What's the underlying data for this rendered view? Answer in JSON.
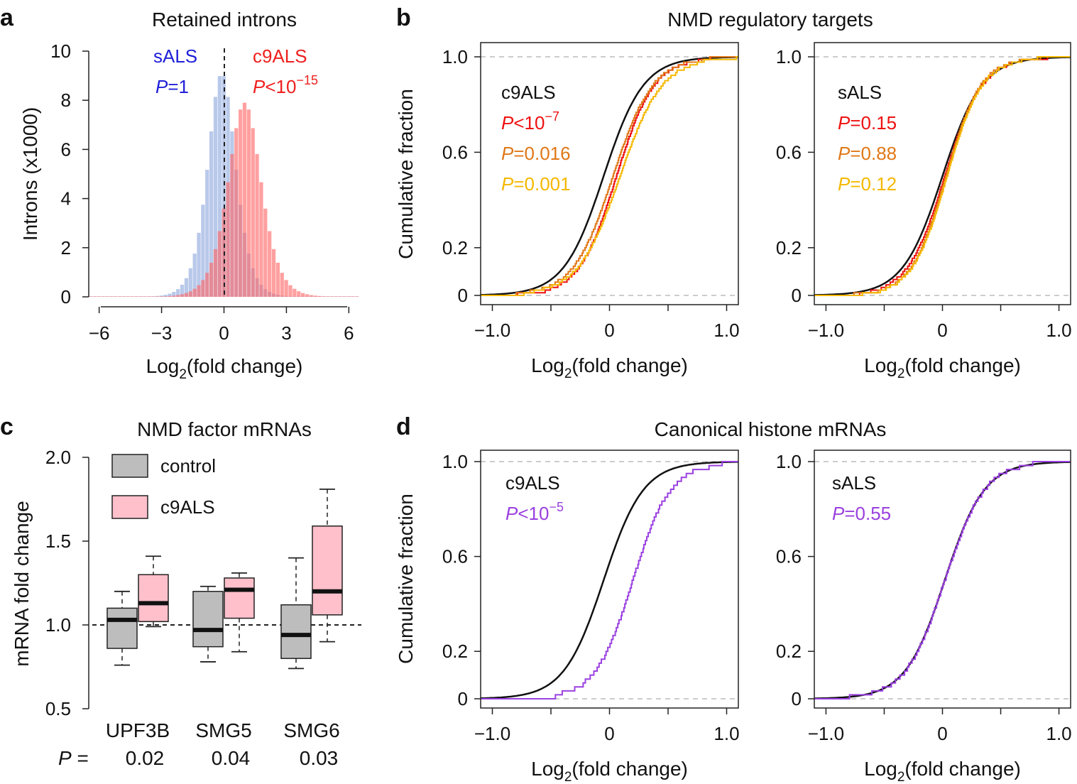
{
  "panel_letters": {
    "a": "a",
    "b": "b",
    "c": "c",
    "d": "d"
  },
  "common": {
    "xlabel_pre": "Log",
    "xlabel_sub": "2",
    "xlabel_post": "(fold change)",
    "cum_ylabel": "Cumulative fraction",
    "p_letter": "P"
  },
  "colors": {
    "black": "#111111",
    "red": "#ee1111",
    "orange": "#e07818",
    "yellow": "#f5b800",
    "purple": "#9a40e0",
    "blue_text": "#1f1fd8",
    "red_text": "#ee2020",
    "blue_fill": "#8ea8dd",
    "red_fill": "#ff6666",
    "control_fill": "#bdbdbd",
    "c9_fill": "#ffc0cb"
  },
  "chart_data": [
    {
      "id": "a",
      "type": "histogram",
      "title": "Retained introns",
      "ylabel": "Introns (x1000)",
      "xlim": [
        -6.5,
        6.5
      ],
      "ylim": [
        0,
        10
      ],
      "xticks": [
        "−6",
        "−3",
        "0",
        "3",
        "6"
      ],
      "xtick_values": [
        -6,
        -3,
        0,
        3,
        6
      ],
      "yticks": [
        "0",
        "2",
        "4",
        "6",
        "8",
        "10"
      ],
      "ytick_values": [
        0,
        2,
        4,
        6,
        8,
        10
      ],
      "series": [
        {
          "name": "sALS",
          "p_value": "=1",
          "center": -0.1,
          "peak": 9.1,
          "scale": 0.8
        },
        {
          "name": "c9ALS",
          "p_value_prefix": "<10",
          "p_value_exp": "−15",
          "center": 1.0,
          "peak": 7.9,
          "scale": 0.95
        }
      ]
    },
    {
      "id": "b",
      "type": "cdf",
      "title": "NMD regulatory targets",
      "subplots": [
        {
          "label": "c9ALS",
          "p_values": [
            {
              "prefix": "<10",
              "exp": "−7",
              "color": "red"
            },
            {
              "prefix": "=0.016",
              "exp": "",
              "color": "orange"
            },
            {
              "prefix": "=0.001",
              "exp": "",
              "color": "yellow"
            }
          ],
          "xlim": [
            -1.1,
            1.1
          ],
          "ylim": [
            0,
            1
          ],
          "xticks": [
            "−1.0",
            "0",
            "1.0"
          ],
          "xtick_values": [
            -1.0,
            0,
            1.0
          ],
          "yticks": [
            "0",
            "0.2",
            "0.6",
            "1.0"
          ],
          "series": [
            {
              "name": "background",
              "color": "black",
              "step": false,
              "center": -0.05,
              "scale": 0.17
            },
            {
              "name": "red",
              "color": "red",
              "step": true,
              "center": 0.06,
              "scale": 0.16,
              "seed": 3
            },
            {
              "name": "orange",
              "color": "orange",
              "step": true,
              "center": 0.03,
              "scale": 0.17,
              "seed": 7
            },
            {
              "name": "yellow",
              "color": "yellow",
              "step": true,
              "center": 0.09,
              "scale": 0.18,
              "seed": 11
            }
          ]
        },
        {
          "label": "sALS",
          "p_values": [
            {
              "prefix": "=0.15",
              "exp": "",
              "color": "red"
            },
            {
              "prefix": "=0.88",
              "exp": "",
              "color": "orange"
            },
            {
              "prefix": "=0.12",
              "exp": "",
              "color": "yellow"
            }
          ],
          "xlim": [
            -1.1,
            1.1
          ],
          "ylim": [
            0,
            1
          ],
          "xticks": [
            "−1.0",
            "0",
            "1.0"
          ],
          "xtick_values": [
            -1.0,
            0,
            1.0
          ],
          "yticks": [
            "0",
            "0.2",
            "0.6",
            "1.0"
          ],
          "series": [
            {
              "name": "background",
              "color": "black",
              "step": false,
              "center": 0.0,
              "scale": 0.17
            },
            {
              "name": "red",
              "color": "red",
              "step": true,
              "center": 0.02,
              "scale": 0.16,
              "seed": 5
            },
            {
              "name": "orange",
              "color": "orange",
              "step": true,
              "center": 0.03,
              "scale": 0.15,
              "seed": 9
            },
            {
              "name": "yellow",
              "color": "yellow",
              "step": true,
              "center": 0.04,
              "scale": 0.15,
              "seed": 13
            }
          ]
        }
      ]
    },
    {
      "id": "c",
      "type": "boxplot",
      "title": "NMD factor mRNAs",
      "ylabel": "mRNA fold change",
      "ylim": [
        0.5,
        2.0
      ],
      "yticks": [
        "0.5",
        "1.0",
        "1.5",
        "2.0"
      ],
      "ytick_values": [
        0.5,
        1.0,
        1.5,
        2.0
      ],
      "reference_line": 1.0,
      "legend": [
        {
          "label": "control",
          "color": "control_fill"
        },
        {
          "label": "c9ALS",
          "color": "c9_fill"
        }
      ],
      "p_row_label": " =",
      "groups": [
        {
          "gene": "UPF3B",
          "p": "0.02",
          "control": {
            "min": 0.76,
            "q1": 0.86,
            "median": 1.03,
            "q3": 1.1,
            "max": 1.2
          },
          "c9ALS": {
            "min": 0.99,
            "q1": 1.02,
            "median": 1.13,
            "q3": 1.3,
            "max": 1.41
          }
        },
        {
          "gene": "SMG5",
          "p": "0.04",
          "control": {
            "min": 0.78,
            "q1": 0.87,
            "median": 0.97,
            "q3": 1.2,
            "max": 1.23
          },
          "c9ALS": {
            "min": 0.84,
            "q1": 1.04,
            "median": 1.21,
            "q3": 1.28,
            "max": 1.31
          }
        },
        {
          "gene": "SMG6",
          "p": "0.03",
          "control": {
            "min": 0.74,
            "q1": 0.8,
            "median": 0.94,
            "q3": 1.12,
            "max": 1.4
          },
          "c9ALS": {
            "min": 0.9,
            "q1": 1.06,
            "median": 1.2,
            "q3": 1.59,
            "max": 1.81
          }
        }
      ]
    },
    {
      "id": "d",
      "type": "cdf",
      "title": "Canonical histone mRNAs",
      "subplots": [
        {
          "label": "c9ALS",
          "p_values": [
            {
              "prefix": "<10",
              "exp": "−5",
              "color": "purple"
            }
          ],
          "xlim": [
            -1.1,
            1.1
          ],
          "ylim": [
            0,
            1
          ],
          "xticks": [
            "−1.0",
            "0",
            "1.0"
          ],
          "xtick_values": [
            -1.0,
            0,
            1.0
          ],
          "yticks": [
            "0",
            "0.2",
            "0.6",
            "1.0"
          ],
          "series": [
            {
              "name": "background",
              "color": "black",
              "step": false,
              "center": -0.05,
              "scale": 0.17
            },
            {
              "name": "histone",
              "color": "purple",
              "step": true,
              "center": 0.2,
              "scale": 0.16,
              "seed": 17,
              "n": 60
            }
          ]
        },
        {
          "label": "sALS",
          "p_values": [
            {
              "prefix": "=0.55",
              "exp": "",
              "color": "purple"
            }
          ],
          "xlim": [
            -1.1,
            1.1
          ],
          "ylim": [
            0,
            1
          ],
          "xticks": [
            "−1.0",
            "0",
            "1.0"
          ],
          "xtick_values": [
            -1.0,
            0,
            1.0
          ],
          "yticks": [
            "0",
            "0.2",
            "0.6",
            "1.0"
          ],
          "series": [
            {
              "name": "background",
              "color": "black",
              "step": false,
              "center": 0.02,
              "scale": 0.17
            },
            {
              "name": "histone",
              "color": "purple",
              "step": true,
              "center": 0.02,
              "scale": 0.17,
              "seed": 21,
              "n": 60
            }
          ]
        }
      ]
    }
  ]
}
